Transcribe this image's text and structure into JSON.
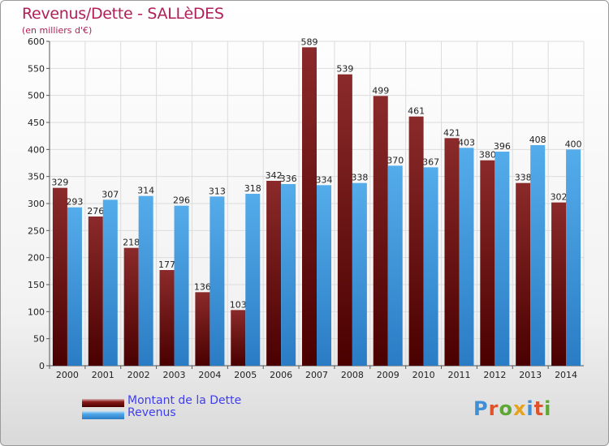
{
  "header": {
    "title": "Revenus/Dette - SALLèDES",
    "subtitle": "(en milliers d'€)"
  },
  "colors": {
    "dette": "#8b1a1a",
    "revenus": "#4da6e8",
    "title": "#b01f57",
    "legend_text": "#3e3ef0"
  },
  "legend": {
    "dette_label": "Montant de la Dette",
    "revenus_label": "Revenus"
  },
  "logo": {
    "text": "Proxiti",
    "letter_colors": [
      "#3f8fd6",
      "#e0532a",
      "#5da832",
      "#e6a21c",
      "#3f8fd6",
      "#e0532a",
      "#5da832"
    ]
  },
  "chart_data": {
    "type": "bar",
    "title": "Revenus/Dette - SALLèDES",
    "ylabel": "(en milliers d'€)",
    "categories": [
      "2000",
      "2001",
      "2002",
      "2003",
      "2004",
      "2005",
      "2006",
      "2007",
      "2008",
      "2009",
      "2010",
      "2011",
      "2012",
      "2013",
      "2014"
    ],
    "series": [
      {
        "name": "Montant de la Dette",
        "values": [
          329,
          276,
          218,
          177,
          136,
          103,
          342,
          589,
          539,
          499,
          461,
          421,
          380,
          338,
          302
        ]
      },
      {
        "name": "Revenus",
        "values": [
          293,
          307,
          314,
          296,
          313,
          318,
          336,
          334,
          338,
          370,
          367,
          403,
          396,
          408,
          400
        ]
      }
    ],
    "ylim": [
      0,
      600
    ],
    "yticks": [
      0,
      50,
      100,
      150,
      200,
      250,
      300,
      350,
      400,
      450,
      500,
      550,
      600
    ],
    "grid": true,
    "legend_position": "bottom-left"
  }
}
